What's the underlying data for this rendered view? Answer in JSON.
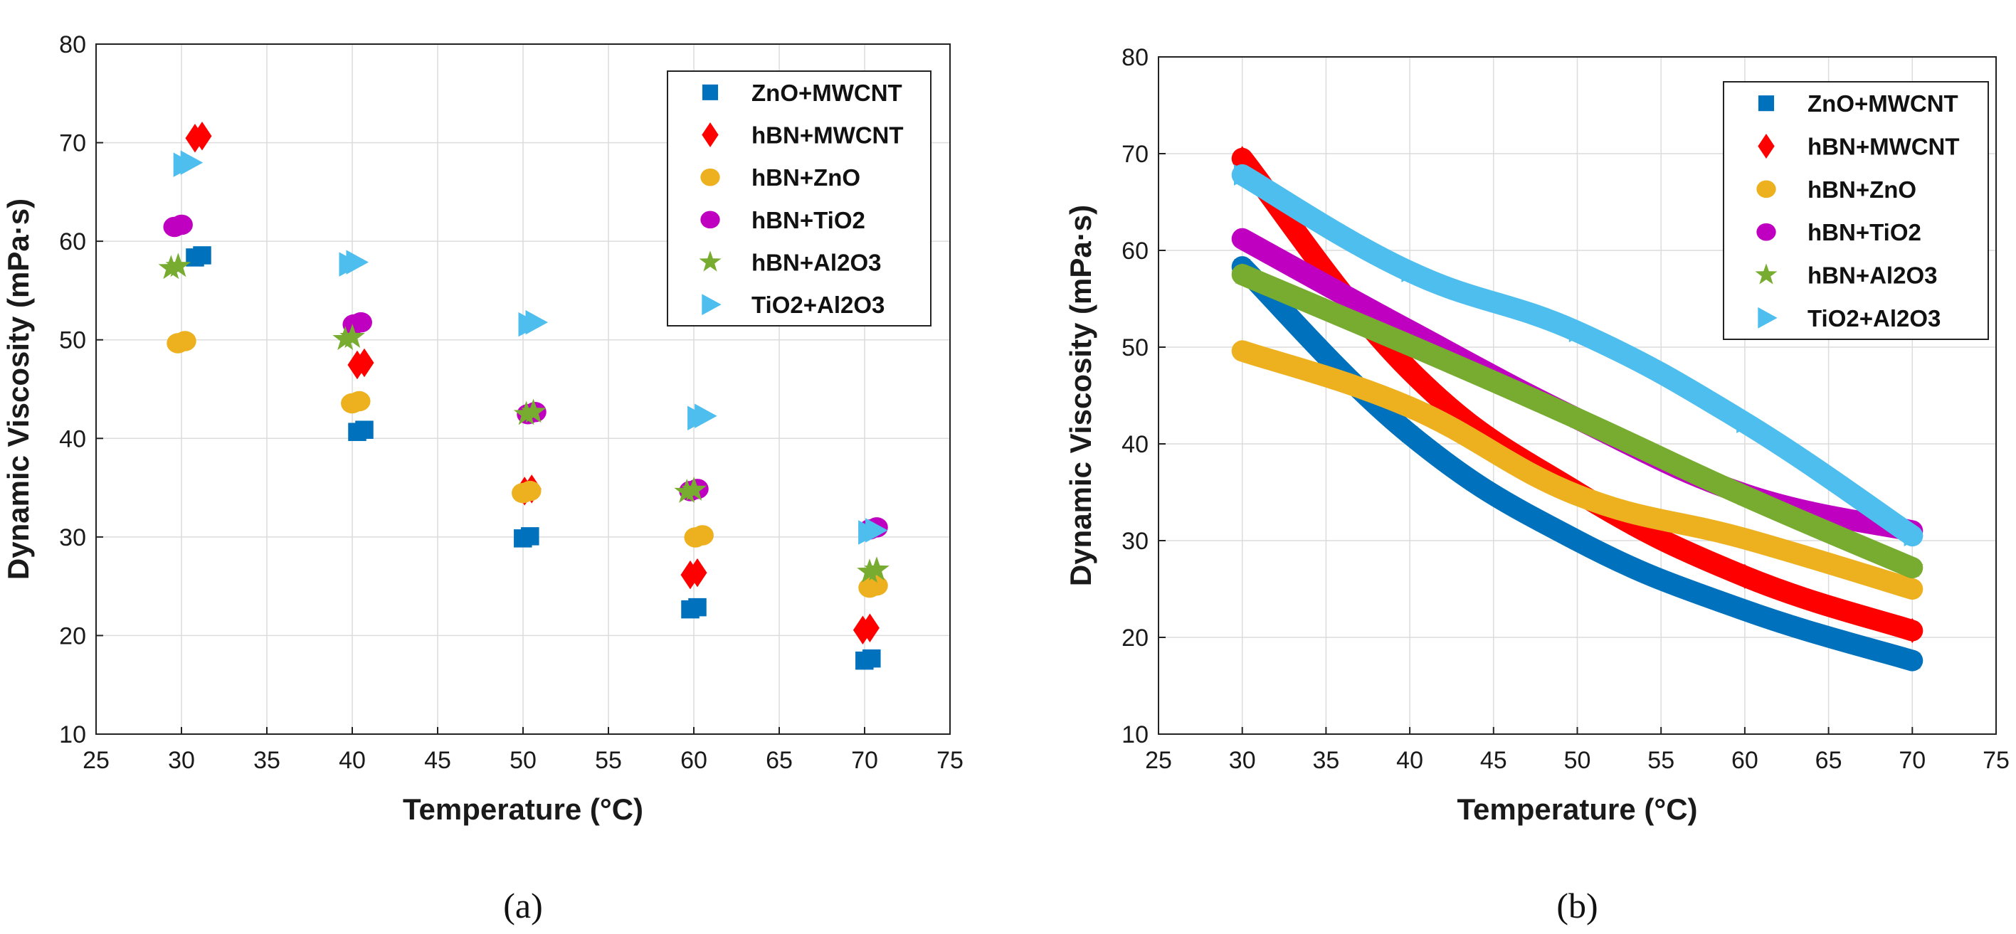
{
  "colors": {
    "ZnO+MWCNT": "#0072bd",
    "hBN+MWCNT": "#ff0000",
    "hBN+ZnO": "#edb120",
    "hBN+TiO2": "#c000c0",
    "hBN+Al2O3": "#77ac30",
    "TiO2+Al2O3": "#4dbeee"
  },
  "chart_data": [
    {
      "type": "scatter",
      "panel_label": "(a)",
      "xlabel": "Temperature (°C)",
      "ylabel": "Dynamic Viscosity (mPa·s)",
      "xlim": [
        25,
        75
      ],
      "ylim": [
        10,
        80
      ],
      "xticks": [
        "25",
        "30",
        "35",
        "40",
        "45",
        "50",
        "55",
        "60",
        "65",
        "70",
        "75"
      ],
      "yticks": [
        "10",
        "20",
        "30",
        "40",
        "50",
        "60",
        "70",
        "80"
      ],
      "grid": true,
      "legend_position": "top-right",
      "series": [
        {
          "name": "ZnO+MWCNT",
          "marker": "square",
          "points": [
            [
              31,
              58.5
            ],
            [
              40.5,
              40.8
            ],
            [
              50.2,
              30.0
            ],
            [
              60.0,
              22.8
            ],
            [
              70.2,
              17.6
            ]
          ]
        },
        {
          "name": "hBN+MWCNT",
          "marker": "diamond",
          "points": [
            [
              31,
              70.6
            ],
            [
              40.5,
              47.6
            ],
            [
              50.3,
              34.8
            ],
            [
              60.0,
              26.3
            ],
            [
              70.1,
              20.7
            ]
          ]
        },
        {
          "name": "hBN+ZnO",
          "marker": "circle",
          "points": [
            [
              30,
              49.8
            ],
            [
              40.2,
              43.7
            ],
            [
              50.2,
              34.6
            ],
            [
              60.3,
              30.1
            ],
            [
              70.5,
              25.0
            ]
          ]
        },
        {
          "name": "hBN+TiO2",
          "marker": "circle",
          "points": [
            [
              29.8,
              61.6
            ],
            [
              40.3,
              51.7
            ],
            [
              50.5,
              42.6
            ],
            [
              60.0,
              34.8
            ],
            [
              70.5,
              30.9
            ]
          ]
        },
        {
          "name": "hBN+Al2O3",
          "marker": "star",
          "points": [
            [
              29.6,
              57.4
            ],
            [
              39.8,
              50.2
            ],
            [
              50.4,
              42.6
            ],
            [
              59.8,
              34.7
            ],
            [
              70.5,
              26.6
            ]
          ]
        },
        {
          "name": "TiO2+Al2O3",
          "marker": "triangle-right",
          "points": [
            [
              30.3,
              67.9
            ],
            [
              40.0,
              57.8
            ],
            [
              50.5,
              51.7
            ],
            [
              60.4,
              42.2
            ],
            [
              70.4,
              30.6
            ]
          ]
        }
      ]
    },
    {
      "type": "line",
      "panel_label": "(b)",
      "xlabel": "Temperature (°C)",
      "ylabel": "Dynamic Viscosity (mPa·s)",
      "xlim": [
        25,
        75
      ],
      "ylim": [
        10,
        80
      ],
      "xticks": [
        "25",
        "30",
        "35",
        "40",
        "45",
        "50",
        "55",
        "60",
        "65",
        "70",
        "75"
      ],
      "yticks": [
        "10",
        "20",
        "30",
        "40",
        "50",
        "60",
        "70",
        "80"
      ],
      "grid": true,
      "legend_position": "top-right",
      "series": [
        {
          "name": "ZnO+MWCNT",
          "marker": "square",
          "points": [
            [
              30,
              58.3
            ],
            [
              40,
              41.0
            ],
            [
              50,
              30.0
            ],
            [
              60,
              22.8
            ],
            [
              70,
              17.6
            ]
          ]
        },
        {
          "name": "hBN+MWCNT",
          "marker": "diamond",
          "points": [
            [
              30,
              69.5
            ],
            [
              40,
              47.6
            ],
            [
              50,
              35.0
            ],
            [
              60,
              26.3
            ],
            [
              70,
              20.7
            ]
          ]
        },
        {
          "name": "hBN+ZnO",
          "marker": "circle",
          "points": [
            [
              30,
              49.6
            ],
            [
              40,
              43.8
            ],
            [
              50,
              34.7
            ],
            [
              60,
              30.2
            ],
            [
              70,
              25.0
            ]
          ]
        },
        {
          "name": "hBN+TiO2",
          "marker": "circle",
          "points": [
            [
              30,
              61.2
            ],
            [
              40,
              51.7
            ],
            [
              50,
              42.6
            ],
            [
              60,
              34.8
            ],
            [
              70,
              31.0
            ]
          ]
        },
        {
          "name": "hBN+Al2O3",
          "marker": "star",
          "points": [
            [
              30,
              57.5
            ],
            [
              40,
              50.2
            ],
            [
              50,
              42.6
            ],
            [
              60,
              34.6
            ],
            [
              70,
              27.2
            ]
          ]
        },
        {
          "name": "TiO2+Al2O3",
          "marker": "triangle-right",
          "points": [
            [
              30,
              67.8
            ],
            [
              40,
              57.8
            ],
            [
              50,
              51.6
            ],
            [
              60,
              42.2
            ],
            [
              70,
              30.5
            ]
          ]
        }
      ]
    }
  ]
}
